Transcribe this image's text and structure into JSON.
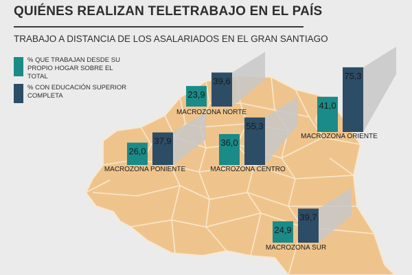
{
  "header": {
    "title": "QUIÉNES REALIZAN TELETRABAJO EN EL PAÍS",
    "subtitle": "TRABAJO A DISTANCIA DE LOS ASALARIADOS EN EL GRAN SANTIAGO"
  },
  "legend": [
    {
      "label": "% QUE TRABAJAN DESDE SU PROPIO HOGAR SOBRE EL TOTAL",
      "color": "#1a8b88"
    },
    {
      "label": "% CON EDUCACIÓN SUPERIOR COMPLETA",
      "color": "#2d4d66"
    }
  ],
  "colors": {
    "background": "#ebebeb",
    "map": "#efc48c",
    "map_border": "#f8e8d0",
    "label_text": "#1a1a1a"
  },
  "chart_data": {
    "type": "bar",
    "title": "TRABAJO A DISTANCIA DE LOS ASALARIADOS EN EL GRAN SANTIAGO",
    "series": [
      {
        "name": "% QUE TRABAJAN DESDE SU PROPIO HOGAR SOBRE EL TOTAL",
        "color": "#1a8b88"
      },
      {
        "name": "% CON EDUCACIÓN SUPERIOR COMPLETA",
        "color": "#2d4d66"
      }
    ],
    "groups": [
      {
        "name": "MACROZONA NORTE",
        "values": [
          23.9,
          39.6
        ],
        "labels": [
          "23,9",
          "39,6"
        ]
      },
      {
        "name": "MACROZONA ORIENTE",
        "values": [
          41.0,
          75.3
        ],
        "labels": [
          "41,0",
          "75,3"
        ]
      },
      {
        "name": "MACROZONA PONIENTE",
        "values": [
          26.0,
          37.9
        ],
        "labels": [
          "26,0",
          "37,9"
        ]
      },
      {
        "name": "MACROZONA CENTRO",
        "values": [
          36.0,
          55.3
        ],
        "labels": [
          "36,0",
          "55,3"
        ]
      },
      {
        "name": "MACROZONA SUR",
        "values": [
          24.9,
          39.7
        ],
        "labels": [
          "24,9",
          "39,7"
        ]
      }
    ]
  }
}
